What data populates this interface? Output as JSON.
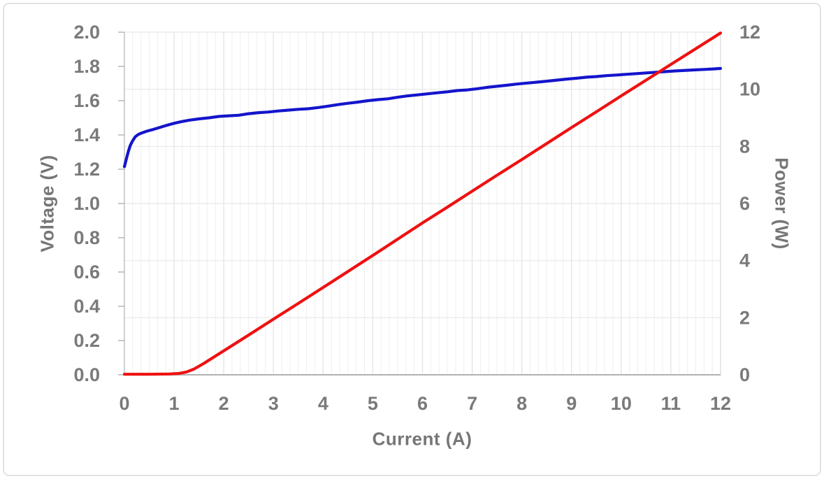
{
  "colors": {
    "voltage_line": "#1414cc",
    "power_line": "#ee1111",
    "tick_label": "#7a7a7a",
    "axis_title": "#767676",
    "minor_grid": "#efefef",
    "major_grid": "#e3e3e3",
    "h_grid": "#e8e8e8",
    "left_axis": "#c0c0c0",
    "bottom_axis": "#b2b2b2",
    "right_border": "#d8d8d8",
    "tick_mark": "#b5b5b5",
    "frame_border": "#e2e2e2"
  },
  "chart_data": {
    "type": "line",
    "title": "",
    "xlabel": "Current (A)",
    "ylabel_left": "Voltage (V)",
    "ylabel_right": "Power (W)",
    "legend": "none",
    "grid": {
      "horizontal": "every 2 W (right axis majors)",
      "vertical": "minor, 6 per 1 A"
    },
    "x_axis": {
      "min": 0,
      "max": 12,
      "major": 1,
      "minor_per_major": 6,
      "tick_labels": [
        "0",
        "1",
        "2",
        "3",
        "4",
        "5",
        "6",
        "7",
        "8",
        "9",
        "10",
        "11",
        "12"
      ]
    },
    "y_axis_left": {
      "min": 0.0,
      "max": 2.0,
      "major": 0.2,
      "tick_labels": [
        "2.0",
        "1.8",
        "1.6",
        "1.4",
        "1.2",
        "1.0",
        "0.8",
        "0.6",
        "0.4",
        "0.2",
        "0.0"
      ]
    },
    "y_axis_right": {
      "min": 0,
      "max": 12,
      "major": 2,
      "tick_labels": [
        "12",
        "10",
        "8",
        "6",
        "4",
        "2",
        "0"
      ]
    },
    "series": [
      {
        "name": "Voltage",
        "axis": "left",
        "color_key": "voltage_line",
        "points": [
          [
            0,
            1.215
          ],
          [
            0.04,
            1.26
          ],
          [
            0.08,
            1.305
          ],
          [
            0.12,
            1.34
          ],
          [
            0.17,
            1.368
          ],
          [
            0.22,
            1.39
          ],
          [
            0.28,
            1.403
          ],
          [
            0.35,
            1.412
          ],
          [
            0.45,
            1.422
          ],
          [
            0.55,
            1.43
          ],
          [
            0.7,
            1.443
          ],
          [
            0.85,
            1.456
          ],
          [
            1.0,
            1.468
          ],
          [
            1.15,
            1.478
          ],
          [
            1.3,
            1.486
          ],
          [
            1.5,
            1.494
          ],
          [
            1.7,
            1.5
          ],
          [
            1.9,
            1.508
          ],
          [
            2.1,
            1.512
          ],
          [
            2.3,
            1.515
          ],
          [
            2.5,
            1.524
          ],
          [
            2.7,
            1.53
          ],
          [
            2.9,
            1.534
          ],
          [
            3.1,
            1.54
          ],
          [
            3.3,
            1.545
          ],
          [
            3.5,
            1.55
          ],
          [
            3.7,
            1.553
          ],
          [
            3.9,
            1.56
          ],
          [
            4.1,
            1.568
          ],
          [
            4.3,
            1.577
          ],
          [
            4.5,
            1.585
          ],
          [
            4.7,
            1.592
          ],
          [
            4.9,
            1.6
          ],
          [
            5.1,
            1.606
          ],
          [
            5.3,
            1.611
          ],
          [
            5.5,
            1.62
          ],
          [
            5.7,
            1.628
          ],
          [
            5.9,
            1.634
          ],
          [
            6.1,
            1.64
          ],
          [
            6.3,
            1.646
          ],
          [
            6.5,
            1.652
          ],
          [
            6.7,
            1.659
          ],
          [
            6.9,
            1.663
          ],
          [
            7.1,
            1.67
          ],
          [
            7.3,
            1.678
          ],
          [
            7.5,
            1.684
          ],
          [
            7.7,
            1.69
          ],
          [
            7.9,
            1.697
          ],
          [
            8.1,
            1.703
          ],
          [
            8.3,
            1.708
          ],
          [
            8.5,
            1.714
          ],
          [
            8.7,
            1.72
          ],
          [
            8.9,
            1.726
          ],
          [
            9.1,
            1.731
          ],
          [
            9.3,
            1.737
          ],
          [
            9.5,
            1.741
          ],
          [
            9.7,
            1.746
          ],
          [
            9.9,
            1.75
          ],
          [
            10.1,
            1.754
          ],
          [
            10.3,
            1.758
          ],
          [
            10.5,
            1.762
          ],
          [
            10.7,
            1.766
          ],
          [
            10.9,
            1.77
          ],
          [
            11.1,
            1.774
          ],
          [
            11.3,
            1.777
          ],
          [
            11.5,
            1.78
          ],
          [
            11.7,
            1.783
          ],
          [
            11.9,
            1.786
          ],
          [
            12,
            1.788
          ]
        ]
      },
      {
        "name": "Power",
        "axis": "right",
        "color_key": "power_line",
        "points": [
          [
            0,
            0.02
          ],
          [
            0.5,
            0.02
          ],
          [
            0.9,
            0.03
          ],
          [
            1.1,
            0.05
          ],
          [
            1.25,
            0.1
          ],
          [
            1.4,
            0.2
          ],
          [
            1.6,
            0.4
          ],
          [
            1.8,
            0.62
          ],
          [
            2.0,
            0.84
          ],
          [
            2.5,
            1.39
          ],
          [
            3.0,
            1.95
          ],
          [
            3.5,
            2.5
          ],
          [
            4.0,
            3.06
          ],
          [
            4.5,
            3.62
          ],
          [
            5.0,
            4.18
          ],
          [
            5.5,
            4.75
          ],
          [
            6.0,
            5.32
          ],
          [
            6.5,
            5.87
          ],
          [
            7.0,
            6.43
          ],
          [
            7.5,
            6.99
          ],
          [
            8.0,
            7.54
          ],
          [
            8.5,
            8.1
          ],
          [
            9.0,
            8.66
          ],
          [
            9.5,
            9.21
          ],
          [
            10.0,
            9.77
          ],
          [
            10.5,
            10.32
          ],
          [
            11.0,
            10.87
          ],
          [
            11.5,
            11.42
          ],
          [
            12.0,
            11.97
          ]
        ]
      }
    ]
  }
}
